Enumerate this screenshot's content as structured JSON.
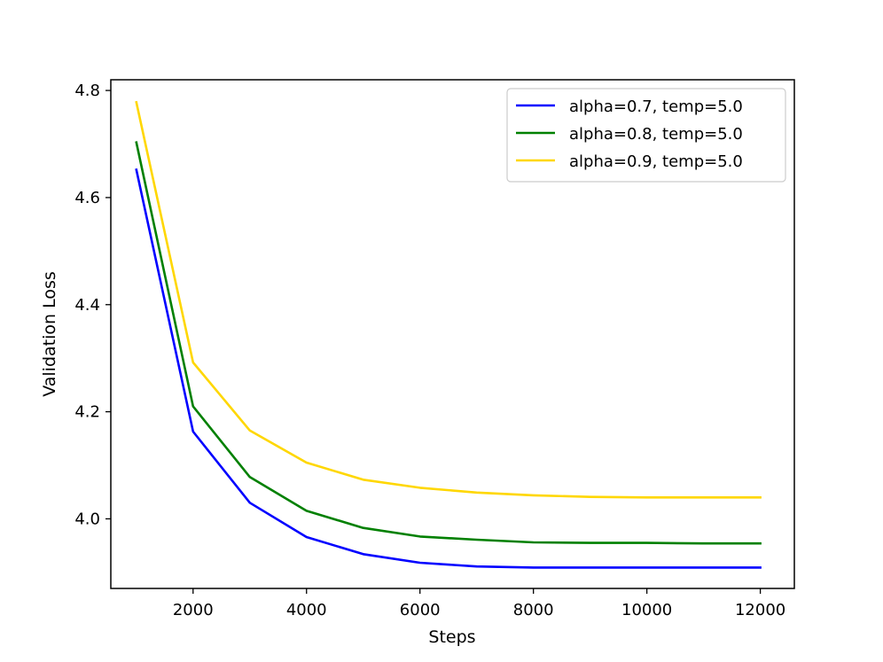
{
  "chart_data": {
    "type": "line",
    "title": "",
    "xlabel": "Steps",
    "ylabel": "Validation Loss",
    "x": [
      1000,
      2000,
      3000,
      4000,
      5000,
      6000,
      7000,
      8000,
      9000,
      10000,
      11000,
      12000
    ],
    "xlim": [
      550,
      12600
    ],
    "ylim": [
      3.87,
      4.82
    ],
    "xticks": [
      2000,
      4000,
      6000,
      8000,
      10000,
      12000
    ],
    "xtick_labels": [
      "2000",
      "4000",
      "6000",
      "8000",
      "10000",
      "12000"
    ],
    "yticks": [
      4.0,
      4.2,
      4.4,
      4.6,
      4.8
    ],
    "ytick_labels": [
      "4.0",
      "4.2",
      "4.4",
      "4.6",
      "4.8"
    ],
    "grid": false,
    "legend_position": "top-right",
    "series": [
      {
        "name": "alpha=0.7, temp=5.0",
        "color": "#0000ff",
        "values": [
          4.652,
          4.163,
          4.03,
          3.966,
          3.934,
          3.918,
          3.911,
          3.909,
          3.909,
          3.909,
          3.909,
          3.909
        ]
      },
      {
        "name": "alpha=0.8, temp=5.0",
        "color": "#008000",
        "values": [
          4.703,
          4.21,
          4.078,
          4.015,
          3.983,
          3.967,
          3.961,
          3.956,
          3.955,
          3.955,
          3.954,
          3.954
        ]
      },
      {
        "name": "alpha=0.9, temp=5.0",
        "color": "#ffd700",
        "values": [
          4.778,
          4.292,
          4.165,
          4.105,
          4.073,
          4.058,
          4.049,
          4.044,
          4.041,
          4.04,
          4.04,
          4.04
        ]
      }
    ]
  }
}
